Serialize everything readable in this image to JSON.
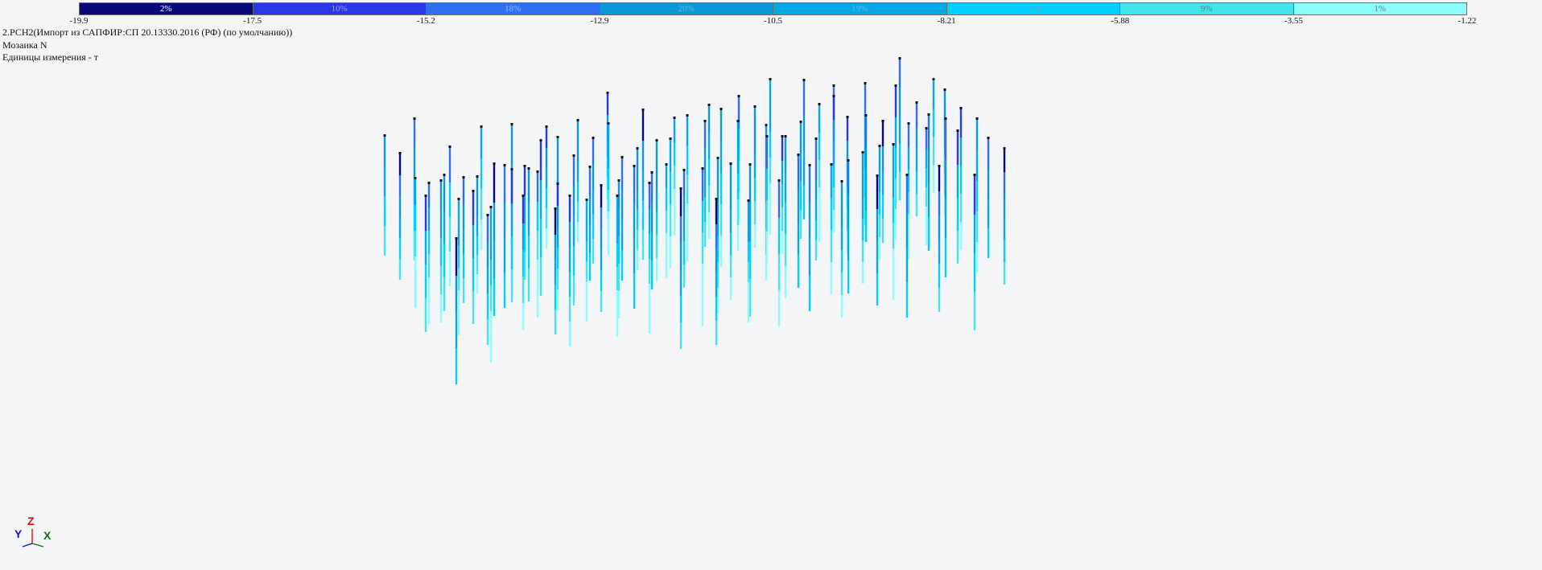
{
  "legend": {
    "segments": [
      {
        "label": "2%",
        "color": "#08087a",
        "text": "#ffffff"
      },
      {
        "label": "10%",
        "color": "#2a37e6",
        "text": "#9aa4ff"
      },
      {
        "label": "18%",
        "color": "#2e6ff0",
        "text": "#9fb5f0"
      },
      {
        "label": "20%",
        "color": "#0a98d6",
        "text": "#6ab4d8"
      },
      {
        "label": "19%",
        "color": "#06a7e6",
        "text": "#6ab9dd"
      },
      {
        "label": "20%",
        "color": "#00d0ff",
        "text": "#6aa7bc"
      },
      {
        "label": "9%",
        "color": "#44e4ef",
        "text": "#5d7e86"
      },
      {
        "label": "1%",
        "color": "#8cfcfc",
        "text": "#5d7e86"
      }
    ],
    "ticks": [
      "-19.9",
      "-17.5",
      "-15.2",
      "-12.9",
      "-10.5",
      "-8.21",
      "-5.88",
      "-3.55",
      "-1.22"
    ]
  },
  "info": {
    "line1": "2.РСН2(Импорт из САПФИР:СП 20.13330.2016 (РФ) (по умолчанию))",
    "line2": "Мозаика N",
    "line3": "Единицы измерения - т"
  },
  "axes": {
    "z": "Z",
    "y": "Y",
    "x": "X",
    "z_color": "#d01010",
    "y_color": "#1010c0",
    "x_color": "#107010"
  }
}
